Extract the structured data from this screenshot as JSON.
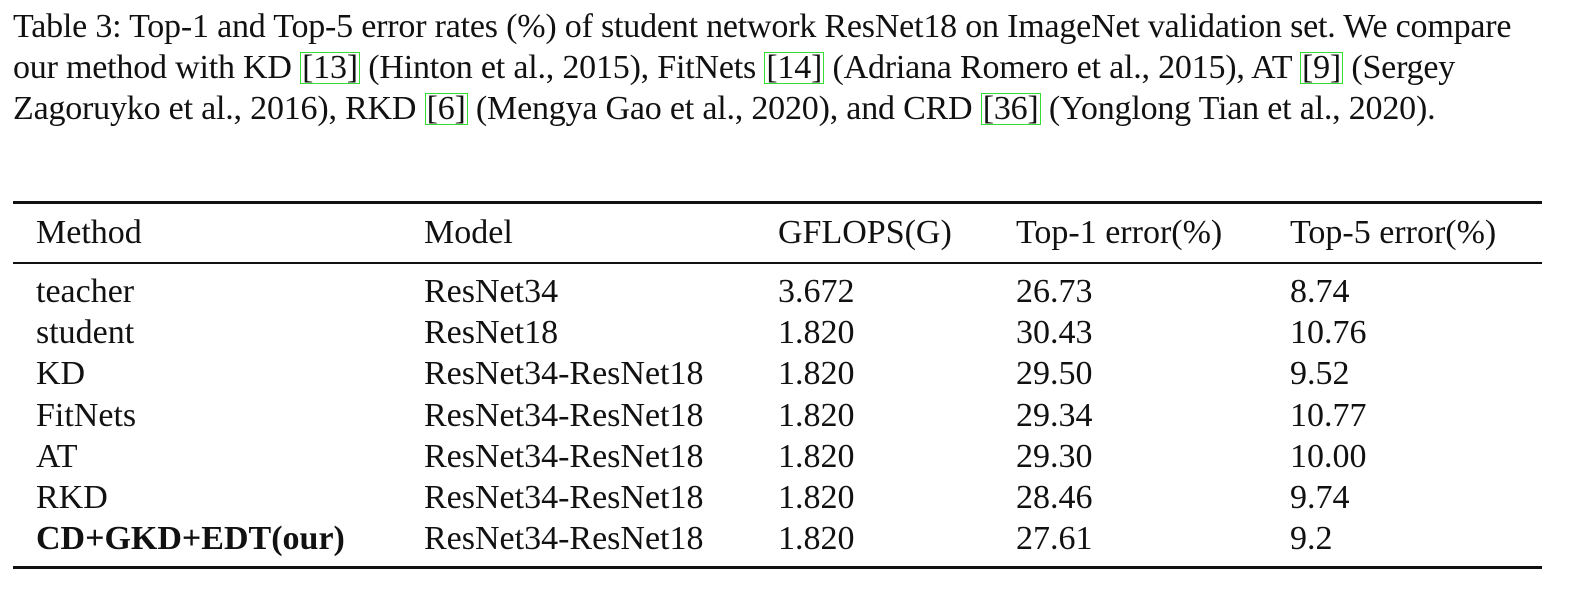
{
  "caption": {
    "label": "Table 3:",
    "text_1": "Top-1 and Top-5 error rates (%) of student network ResNet18 on ImageNet validation set. We compare our method with KD ",
    "ref_1": "[13]",
    "text_2": " (Hinton et al., 2015), FitNets ",
    "ref_2": "[14]",
    "text_3": " (Adriana Romero et al., 2015), AT ",
    "ref_3": "[9]",
    "text_4": " (Sergey Zagoruyko et al., 2016), RKD ",
    "ref_4": "[6]",
    "text_5": " (Mengya Gao et al., 2020), and CRD ",
    "ref_5": "[36]",
    "text_6": " (Yonglong Tian et al., 2020)."
  },
  "table": {
    "headers": [
      "Method",
      "Model",
      "GFLOPS(G)",
      "Top-1 error(%)",
      "Top-5 error(%)"
    ],
    "rows": [
      [
        "teacher",
        "ResNet34",
        "3.672",
        "26.73",
        "8.74"
      ],
      [
        "student",
        "ResNet18",
        "1.820",
        "30.43",
        "10.76"
      ],
      [
        "KD",
        "ResNet34-ResNet18",
        "1.820",
        "29.50",
        "9.52"
      ],
      [
        "FitNets",
        "ResNet34-ResNet18",
        "1.820",
        "29.34",
        "10.77"
      ],
      [
        "AT",
        "ResNet34-ResNet18",
        "1.820",
        "29.30",
        "10.00"
      ],
      [
        "RKD",
        "ResNet34-ResNet18",
        "1.820",
        "28.46",
        "9.74"
      ],
      [
        "CD+GKD+EDT(our)",
        "ResNet34-ResNet18",
        "1.820",
        "27.61",
        "9.2"
      ]
    ],
    "bold_row": 6
  },
  "colors": {
    "text": "#111111",
    "ref_box": "#33dd33"
  }
}
